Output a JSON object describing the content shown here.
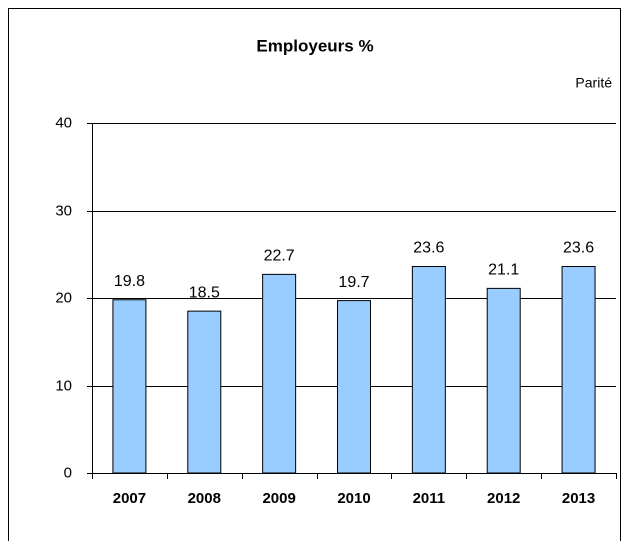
{
  "chart_data": {
    "type": "bar",
    "title": "Employeurs %",
    "categories": [
      "2007",
      "2008",
      "2009",
      "2010",
      "2011",
      "2012",
      "2013"
    ],
    "series": [
      {
        "name": "Parité",
        "color": "#99ccff",
        "values": [
          19.8,
          18.5,
          22.7,
          19.7,
          23.6,
          21.1,
          23.6
        ]
      }
    ],
    "ylim": [
      0,
      40
    ],
    "yticks": [
      0,
      10,
      20,
      30,
      40
    ],
    "grid": true
  }
}
